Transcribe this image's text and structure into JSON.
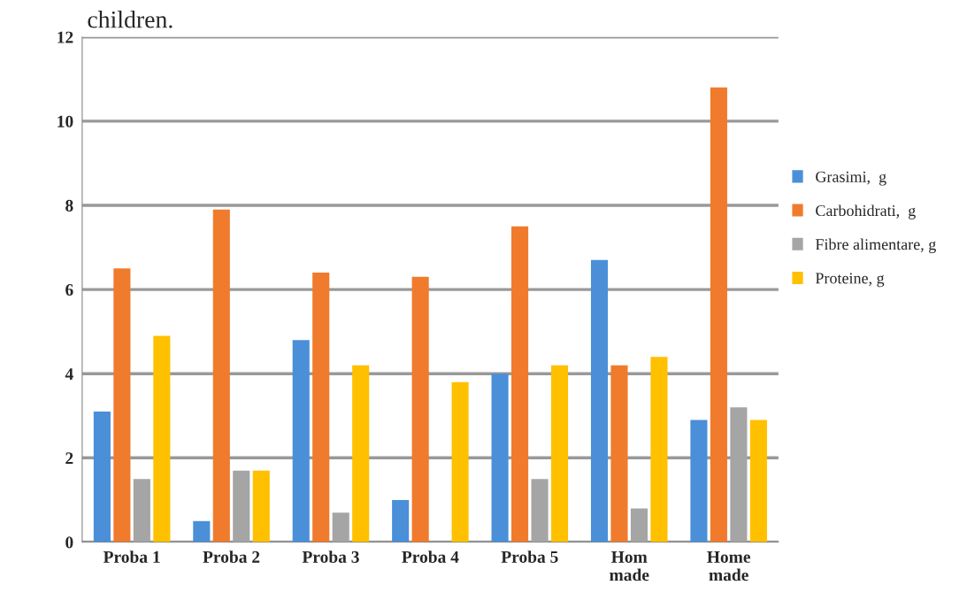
{
  "chart_data": {
    "type": "bar",
    "categories": [
      "Proba 1",
      "Proba 2",
      "Proba 3",
      "Proba 4",
      "Proba 5",
      "Hom\nmade",
      "Home\nmade"
    ],
    "series": [
      {
        "name": "Grasimi,  g",
        "color": "#4a8fd8",
        "values": [
          3.1,
          0.5,
          4.8,
          1.0,
          4.0,
          6.7,
          2.9
        ]
      },
      {
        "name": "Carbohidrati,  g",
        "color": "#f07b2c",
        "values": [
          6.5,
          7.9,
          6.4,
          6.3,
          7.5,
          4.2,
          10.8
        ]
      },
      {
        "name": "Fibre alimentare, g",
        "color": "#a5a5a5",
        "values": [
          1.5,
          1.7,
          0.7,
          0.0,
          1.5,
          0.8,
          3.2
        ]
      },
      {
        "name": "Proteine, g",
        "color": "#ffc000",
        "values": [
          4.9,
          1.7,
          4.2,
          3.8,
          4.2,
          4.4,
          2.9
        ]
      }
    ],
    "ylim": [
      0,
      12
    ],
    "yticks": [
      0,
      2,
      4,
      6,
      8,
      10,
      12
    ],
    "grid": "y",
    "legend": "right",
    "annotations": [
      "children."
    ]
  }
}
